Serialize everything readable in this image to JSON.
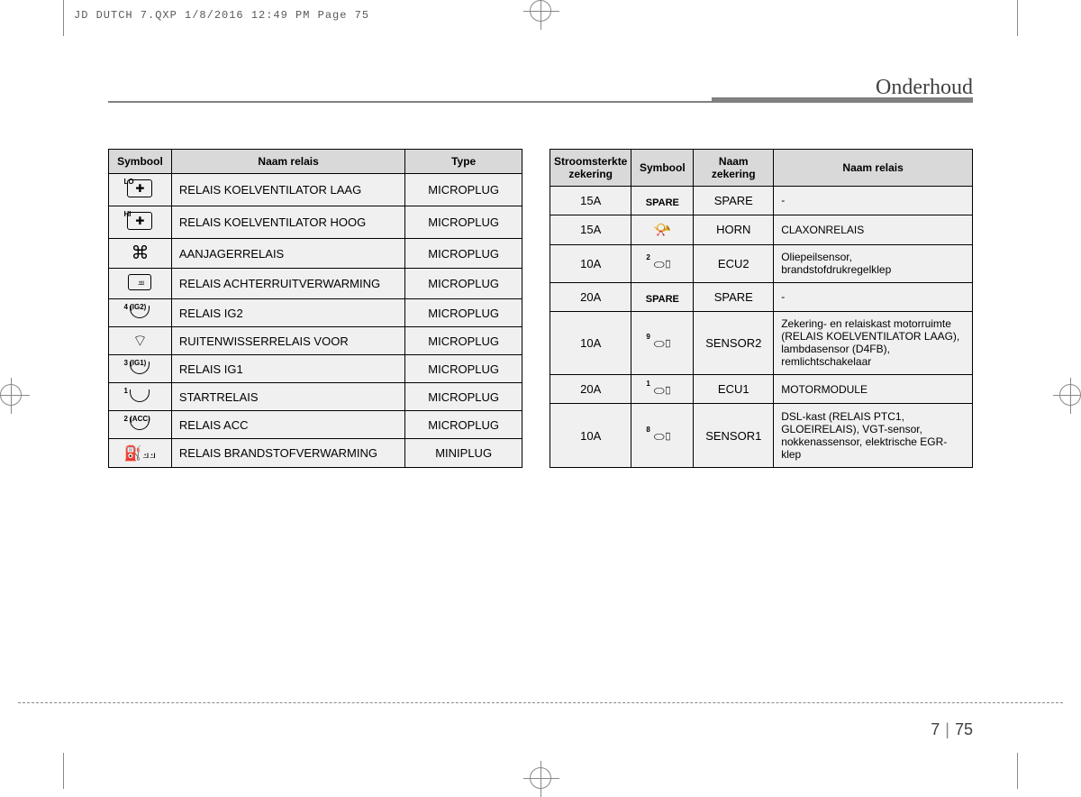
{
  "header": "JD DUTCH 7.QXP  1/8/2016  12:49 PM  Page 75",
  "title": "Onderhoud",
  "table1": {
    "headers": [
      "Symbool",
      "Naam relais",
      "Type"
    ],
    "rows": [
      {
        "sup": "LO",
        "icon": "fanbox",
        "name": "RELAIS KOELVENTILATOR LAAG",
        "type": "MICROPLUG"
      },
      {
        "sup": "HI",
        "icon": "fanbox",
        "name": "RELAIS KOELVENTILATOR HOOG",
        "type": "MICROPLUG"
      },
      {
        "sup": "",
        "icon": "clover",
        "name": "AANJAGERRELAIS",
        "type": "MICROPLUG"
      },
      {
        "sup": "",
        "icon": "defrost",
        "name": "RELAIS ACHTERRUITVERWARMING",
        "type": "MICROPLUG"
      },
      {
        "sup": "4 (IG2)",
        "icon": "arc",
        "name": "RELAIS IG2",
        "type": "MICROPLUG"
      },
      {
        "sup": "",
        "icon": "wiper",
        "name": "RUITENWISSERRELAIS VOOR",
        "type": "MICROPLUG"
      },
      {
        "sup": "3 (IG1)",
        "icon": "arc",
        "name": "RELAIS IG1",
        "type": "MICROPLUG"
      },
      {
        "sup": "1",
        "icon": "arc",
        "name": "STARTRELAIS",
        "type": "MICROPLUG"
      },
      {
        "sup": "2 (ACC)",
        "icon": "arc",
        "name": "RELAIS ACC",
        "type": "MICROPLUG"
      },
      {
        "sup": "",
        "icon": "fuel",
        "name": "RELAIS BRANDSTOFVERWARMING",
        "type": "MINIPLUG"
      }
    ]
  },
  "table2": {
    "headers": [
      "Stroomsterkte zekering",
      "Symbool",
      "Naam zekering",
      "Naam relais"
    ],
    "rows": [
      {
        "amp": "15A",
        "sup": "",
        "icon": "spare",
        "zname": "SPARE",
        "relay": "-"
      },
      {
        "amp": "15A",
        "sup": "",
        "icon": "horn",
        "zname": "HORN",
        "relay": "CLAXONRELAIS"
      },
      {
        "amp": "10A",
        "sup": "2",
        "icon": "ecu",
        "zname": "ECU2",
        "relay": "Oliepeilsensor, brandstofdrukregelklep"
      },
      {
        "amp": "20A",
        "sup": "",
        "icon": "spare",
        "zname": "SPARE",
        "relay": "-"
      },
      {
        "amp": "10A",
        "sup": "9",
        "icon": "ecu",
        "zname": "SENSOR2",
        "relay": "Zekering- en relaiskast motorruimte (RELAIS KOELVENTILATOR LAAG), lambdasensor (D4FB), remlichtschakelaar"
      },
      {
        "amp": "20A",
        "sup": "1",
        "icon": "ecu",
        "zname": "ECU1",
        "relay": "MOTORMODULE"
      },
      {
        "amp": "10A",
        "sup": "8",
        "icon": "ecu",
        "zname": "SENSOR1",
        "relay": "DSL-kast (RELAIS PTC1, GLOEIRELAIS), VGT-sensor, nokkenassensor, elektrische EGR-klep"
      }
    ]
  },
  "pagenum": {
    "section": "7",
    "page": "75"
  }
}
